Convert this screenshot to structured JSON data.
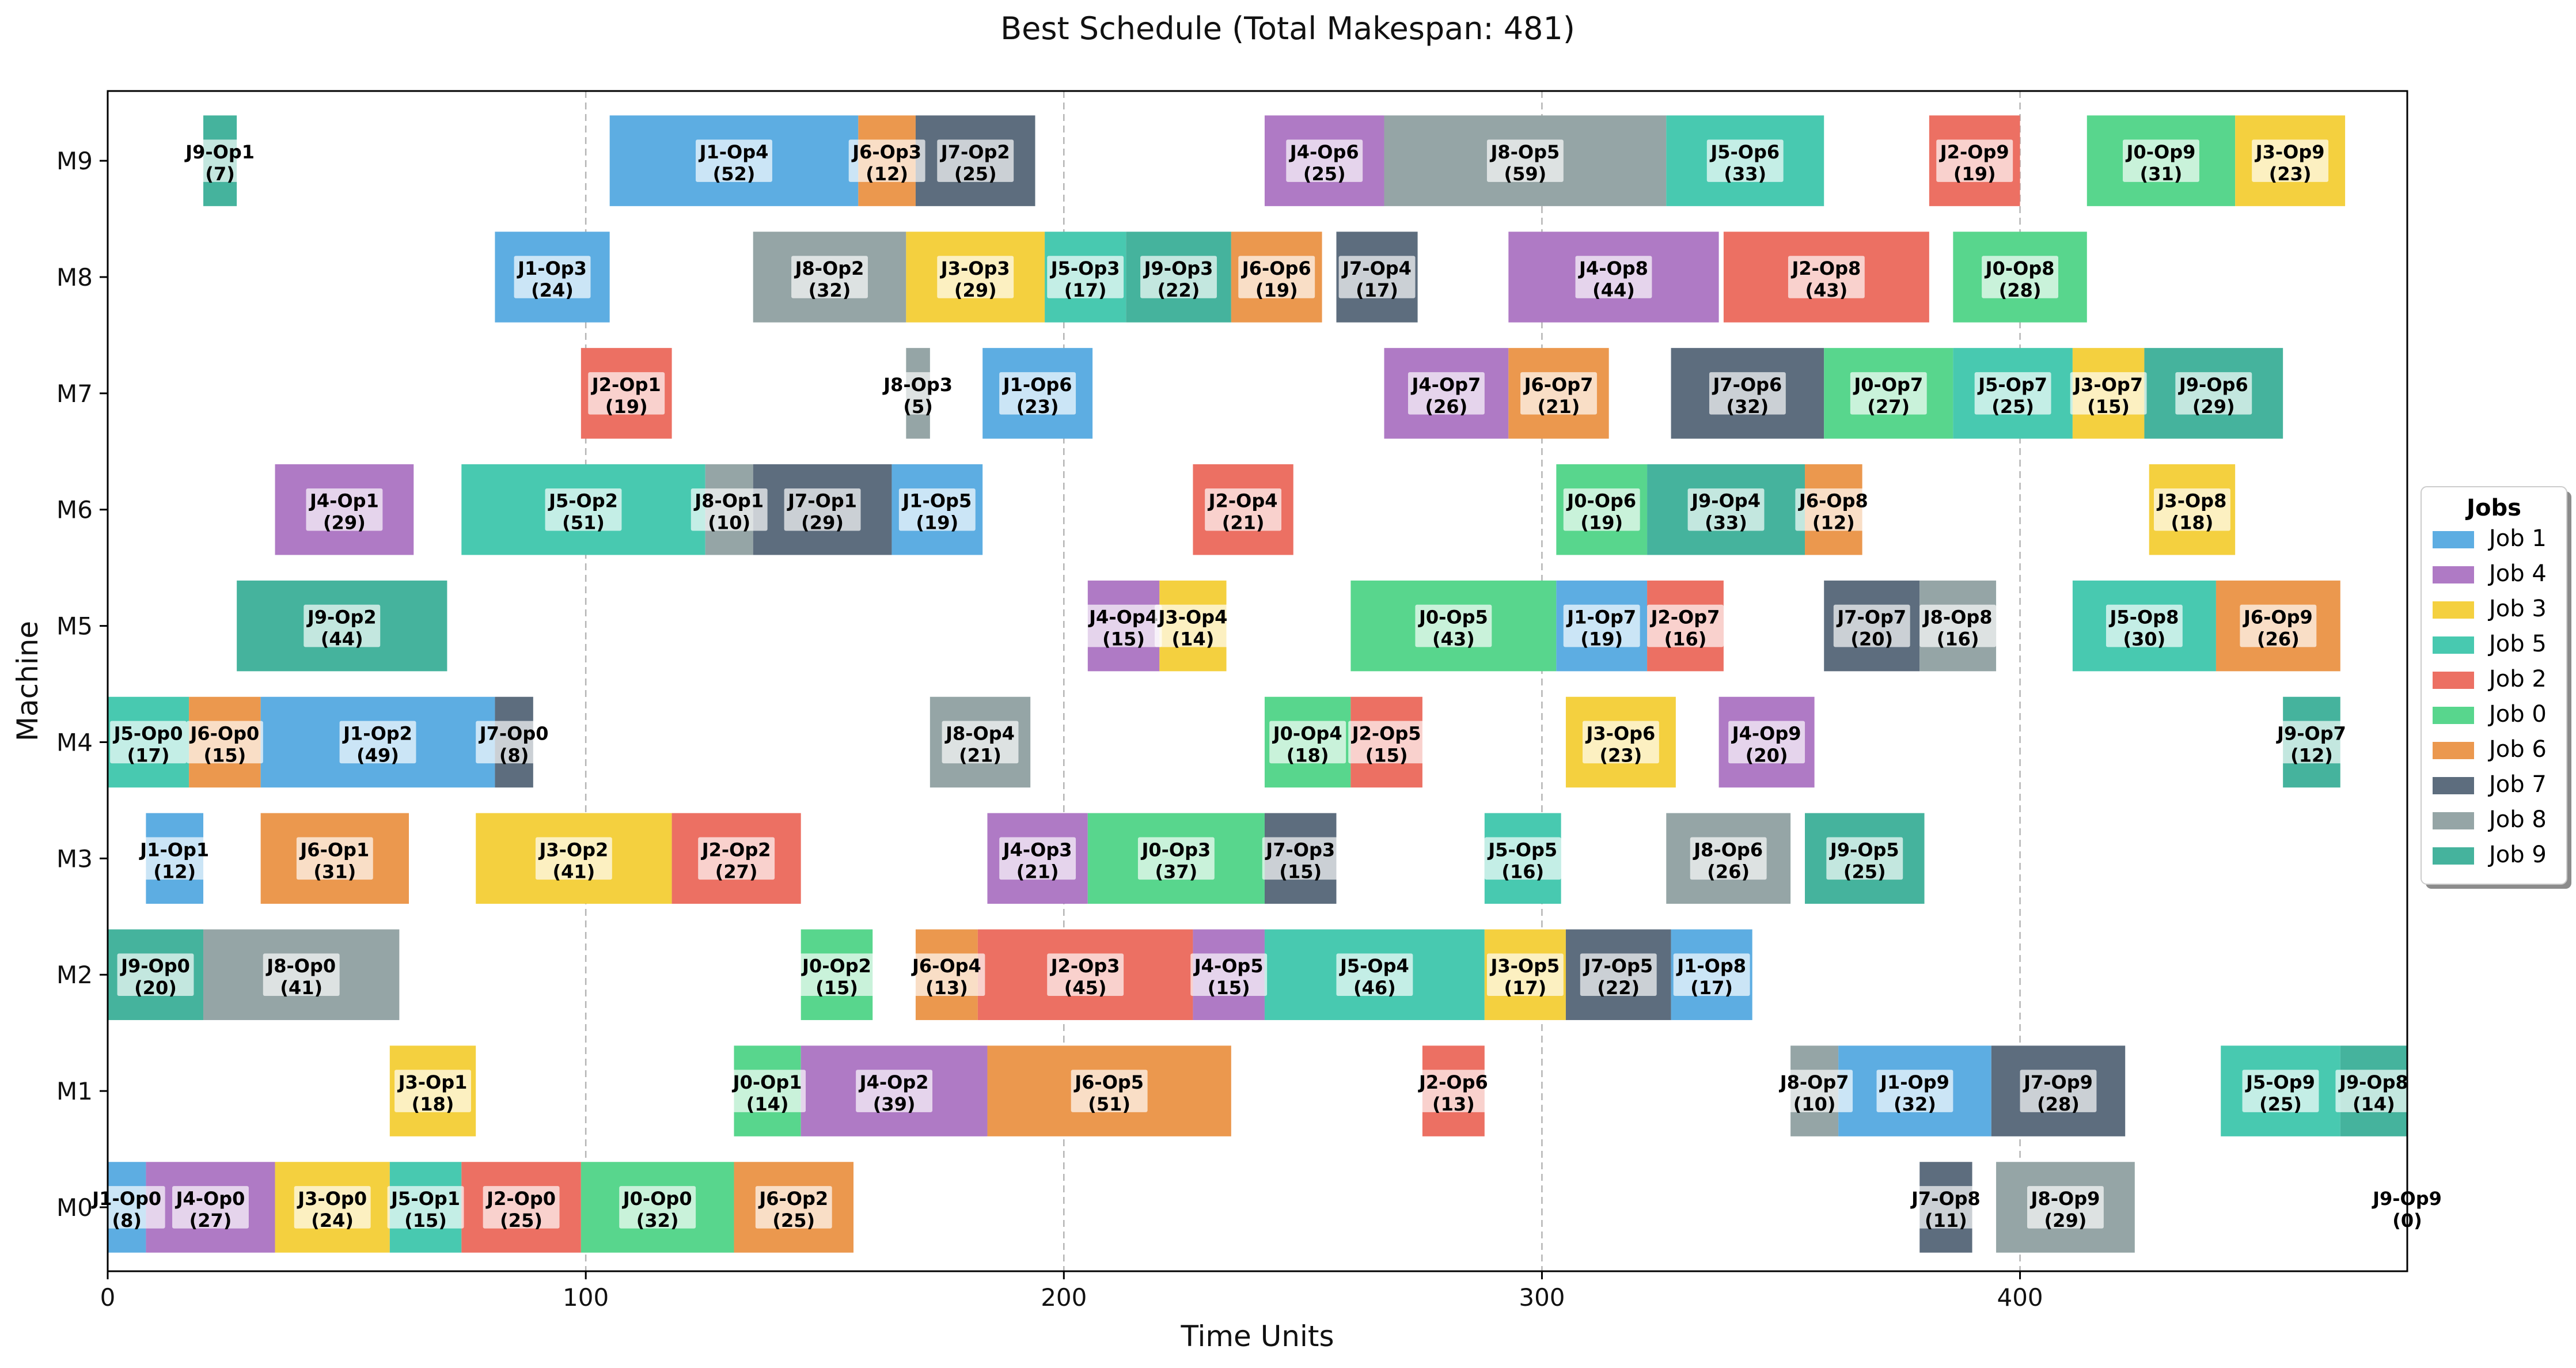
{
  "chart_data": {
    "type": "gantt",
    "title": "Best Schedule (Total Makespan: 481)",
    "xlabel": "Time Units",
    "ylabel": "Machine",
    "xlim": [
      0,
      481
    ],
    "xticks": [
      0,
      100,
      200,
      300,
      400
    ],
    "grid": "vertical dashed at x ticks",
    "machines": [
      "M0",
      "M1",
      "M2",
      "M3",
      "M4",
      "M5",
      "M6",
      "M7",
      "M8",
      "M9"
    ],
    "legend": {
      "title": "Jobs",
      "placement": "center-right",
      "entries": [
        {
          "label": "Job 1",
          "color": "#5DADE2"
        },
        {
          "label": "Job 4",
          "color": "#AF7AC5"
        },
        {
          "label": "Job 3",
          "color": "#F4D03F"
        },
        {
          "label": "Job 5",
          "color": "#48C9B0"
        },
        {
          "label": "Job 2",
          "color": "#EC7063"
        },
        {
          "label": "Job 0",
          "color": "#58D68D"
        },
        {
          "label": "Job 6",
          "color": "#EB984E"
        },
        {
          "label": "Job 7",
          "color": "#5D6D7E"
        },
        {
          "label": "Job 8",
          "color": "#95A5A6"
        },
        {
          "label": "Job 9",
          "color": "#45B39D"
        }
      ]
    },
    "job_colors": {
      "0": "#58D68D",
      "1": "#5DADE2",
      "2": "#EC7063",
      "3": "#F4D03F",
      "4": "#AF7AC5",
      "5": "#48C9B0",
      "6": "#EB984E",
      "7": "#5D6D7E",
      "8": "#95A5A6",
      "9": "#45B39D"
    },
    "operations": [
      {
        "machine": "M0",
        "job": 1,
        "op": 0,
        "start": 0,
        "duration": 8
      },
      {
        "machine": "M0",
        "job": 4,
        "op": 0,
        "start": 8,
        "duration": 27
      },
      {
        "machine": "M0",
        "job": 3,
        "op": 0,
        "start": 35,
        "duration": 24
      },
      {
        "machine": "M0",
        "job": 5,
        "op": 1,
        "start": 59,
        "duration": 15
      },
      {
        "machine": "M0",
        "job": 2,
        "op": 0,
        "start": 74,
        "duration": 25
      },
      {
        "machine": "M0",
        "job": 0,
        "op": 0,
        "start": 99,
        "duration": 32
      },
      {
        "machine": "M0",
        "job": 6,
        "op": 2,
        "start": 131,
        "duration": 25
      },
      {
        "machine": "M0",
        "job": 7,
        "op": 8,
        "start": 379,
        "duration": 11
      },
      {
        "machine": "M0",
        "job": 8,
        "op": 9,
        "start": 395,
        "duration": 29
      },
      {
        "machine": "M0",
        "job": 9,
        "op": 9,
        "start": 481,
        "duration": 0
      },
      {
        "machine": "M1",
        "job": 3,
        "op": 1,
        "start": 59,
        "duration": 18
      },
      {
        "machine": "M1",
        "job": 0,
        "op": 1,
        "start": 131,
        "duration": 14
      },
      {
        "machine": "M1",
        "job": 4,
        "op": 2,
        "start": 145,
        "duration": 39
      },
      {
        "machine": "M1",
        "job": 6,
        "op": 5,
        "start": 184,
        "duration": 51
      },
      {
        "machine": "M1",
        "job": 2,
        "op": 6,
        "start": 275,
        "duration": 13
      },
      {
        "machine": "M1",
        "job": 8,
        "op": 7,
        "start": 352,
        "duration": 10
      },
      {
        "machine": "M1",
        "job": 1,
        "op": 9,
        "start": 362,
        "duration": 32
      },
      {
        "machine": "M1",
        "job": 7,
        "op": 9,
        "start": 394,
        "duration": 28
      },
      {
        "machine": "M1",
        "job": 5,
        "op": 9,
        "start": 442,
        "duration": 25
      },
      {
        "machine": "M1",
        "job": 9,
        "op": 8,
        "start": 467,
        "duration": 14
      },
      {
        "machine": "M2",
        "job": 9,
        "op": 0,
        "start": 0,
        "duration": 20
      },
      {
        "machine": "M2",
        "job": 8,
        "op": 0,
        "start": 20,
        "duration": 41
      },
      {
        "machine": "M2",
        "job": 0,
        "op": 2,
        "start": 145,
        "duration": 15
      },
      {
        "machine": "M2",
        "job": 6,
        "op": 4,
        "start": 169,
        "duration": 13
      },
      {
        "machine": "M2",
        "job": 2,
        "op": 3,
        "start": 182,
        "duration": 45
      },
      {
        "machine": "M2",
        "job": 4,
        "op": 5,
        "start": 227,
        "duration": 15
      },
      {
        "machine": "M2",
        "job": 5,
        "op": 4,
        "start": 242,
        "duration": 46
      },
      {
        "machine": "M2",
        "job": 3,
        "op": 5,
        "start": 288,
        "duration": 17
      },
      {
        "machine": "M2",
        "job": 7,
        "op": 5,
        "start": 305,
        "duration": 22
      },
      {
        "machine": "M2",
        "job": 1,
        "op": 8,
        "start": 327,
        "duration": 17
      },
      {
        "machine": "M3",
        "job": 1,
        "op": 1,
        "start": 8,
        "duration": 12
      },
      {
        "machine": "M3",
        "job": 6,
        "op": 1,
        "start": 32,
        "duration": 31
      },
      {
        "machine": "M3",
        "job": 3,
        "op": 2,
        "start": 77,
        "duration": 41
      },
      {
        "machine": "M3",
        "job": 2,
        "op": 2,
        "start": 118,
        "duration": 27
      },
      {
        "machine": "M3",
        "job": 4,
        "op": 3,
        "start": 184,
        "duration": 21
      },
      {
        "machine": "M3",
        "job": 0,
        "op": 3,
        "start": 205,
        "duration": 37
      },
      {
        "machine": "M3",
        "job": 7,
        "op": 3,
        "start": 242,
        "duration": 15
      },
      {
        "machine": "M3",
        "job": 5,
        "op": 5,
        "start": 288,
        "duration": 16
      },
      {
        "machine": "M3",
        "job": 8,
        "op": 6,
        "start": 326,
        "duration": 26
      },
      {
        "machine": "M3",
        "job": 9,
        "op": 5,
        "start": 355,
        "duration": 25
      },
      {
        "machine": "M4",
        "job": 5,
        "op": 0,
        "start": 0,
        "duration": 17
      },
      {
        "machine": "M4",
        "job": 6,
        "op": 0,
        "start": 17,
        "duration": 15
      },
      {
        "machine": "M4",
        "job": 1,
        "op": 2,
        "start": 32,
        "duration": 49
      },
      {
        "machine": "M4",
        "job": 7,
        "op": 0,
        "start": 81,
        "duration": 8
      },
      {
        "machine": "M4",
        "job": 8,
        "op": 4,
        "start": 172,
        "duration": 21
      },
      {
        "machine": "M4",
        "job": 0,
        "op": 4,
        "start": 242,
        "duration": 18
      },
      {
        "machine": "M4",
        "job": 2,
        "op": 5,
        "start": 260,
        "duration": 15
      },
      {
        "machine": "M4",
        "job": 3,
        "op": 6,
        "start": 305,
        "duration": 23
      },
      {
        "machine": "M4",
        "job": 4,
        "op": 9,
        "start": 337,
        "duration": 20
      },
      {
        "machine": "M4",
        "job": 9,
        "op": 7,
        "start": 455,
        "duration": 12
      },
      {
        "machine": "M5",
        "job": 9,
        "op": 2,
        "start": 27,
        "duration": 44
      },
      {
        "machine": "M5",
        "job": 4,
        "op": 4,
        "start": 205,
        "duration": 15
      },
      {
        "machine": "M5",
        "job": 3,
        "op": 4,
        "start": 220,
        "duration": 14
      },
      {
        "machine": "M5",
        "job": 0,
        "op": 5,
        "start": 260,
        "duration": 43
      },
      {
        "machine": "M5",
        "job": 1,
        "op": 7,
        "start": 303,
        "duration": 19
      },
      {
        "machine": "M5",
        "job": 2,
        "op": 7,
        "start": 322,
        "duration": 16
      },
      {
        "machine": "M5",
        "job": 7,
        "op": 7,
        "start": 359,
        "duration": 20
      },
      {
        "machine": "M5",
        "job": 8,
        "op": 8,
        "start": 379,
        "duration": 16
      },
      {
        "machine": "M5",
        "job": 5,
        "op": 8,
        "start": 411,
        "duration": 30
      },
      {
        "machine": "M5",
        "job": 6,
        "op": 9,
        "start": 441,
        "duration": 26
      },
      {
        "machine": "M6",
        "job": 4,
        "op": 1,
        "start": 35,
        "duration": 29
      },
      {
        "machine": "M6",
        "job": 5,
        "op": 2,
        "start": 74,
        "duration": 51
      },
      {
        "machine": "M6",
        "job": 8,
        "op": 1,
        "start": 125,
        "duration": 10
      },
      {
        "machine": "M6",
        "job": 7,
        "op": 1,
        "start": 135,
        "duration": 29
      },
      {
        "machine": "M6",
        "job": 1,
        "op": 5,
        "start": 164,
        "duration": 19
      },
      {
        "machine": "M6",
        "job": 2,
        "op": 4,
        "start": 227,
        "duration": 21
      },
      {
        "machine": "M6",
        "job": 0,
        "op": 6,
        "start": 303,
        "duration": 19
      },
      {
        "machine": "M6",
        "job": 9,
        "op": 4,
        "start": 322,
        "duration": 33
      },
      {
        "machine": "M6",
        "job": 6,
        "op": 8,
        "start": 355,
        "duration": 12
      },
      {
        "machine": "M6",
        "job": 3,
        "op": 8,
        "start": 427,
        "duration": 18
      },
      {
        "machine": "M7",
        "job": 2,
        "op": 1,
        "start": 99,
        "duration": 19
      },
      {
        "machine": "M7",
        "job": 8,
        "op": 3,
        "start": 167,
        "duration": 5
      },
      {
        "machine": "M7",
        "job": 1,
        "op": 6,
        "start": 183,
        "duration": 23
      },
      {
        "machine": "M7",
        "job": 4,
        "op": 7,
        "start": 267,
        "duration": 26
      },
      {
        "machine": "M7",
        "job": 6,
        "op": 7,
        "start": 293,
        "duration": 21
      },
      {
        "machine": "M7",
        "job": 7,
        "op": 6,
        "start": 327,
        "duration": 32
      },
      {
        "machine": "M7",
        "job": 0,
        "op": 7,
        "start": 359,
        "duration": 27
      },
      {
        "machine": "M7",
        "job": 5,
        "op": 7,
        "start": 386,
        "duration": 25
      },
      {
        "machine": "M7",
        "job": 3,
        "op": 7,
        "start": 411,
        "duration": 15
      },
      {
        "machine": "M7",
        "job": 9,
        "op": 6,
        "start": 426,
        "duration": 29
      },
      {
        "machine": "M8",
        "job": 1,
        "op": 3,
        "start": 81,
        "duration": 24
      },
      {
        "machine": "M8",
        "job": 8,
        "op": 2,
        "start": 135,
        "duration": 32
      },
      {
        "machine": "M8",
        "job": 3,
        "op": 3,
        "start": 167,
        "duration": 29
      },
      {
        "machine": "M8",
        "job": 5,
        "op": 3,
        "start": 196,
        "duration": 17
      },
      {
        "machine": "M8",
        "job": 9,
        "op": 3,
        "start": 213,
        "duration": 22
      },
      {
        "machine": "M8",
        "job": 6,
        "op": 6,
        "start": 235,
        "duration": 19
      },
      {
        "machine": "M8",
        "job": 7,
        "op": 4,
        "start": 257,
        "duration": 17
      },
      {
        "machine": "M8",
        "job": 4,
        "op": 8,
        "start": 293,
        "duration": 44
      },
      {
        "machine": "M8",
        "job": 2,
        "op": 8,
        "start": 338,
        "duration": 43
      },
      {
        "machine": "M8",
        "job": 0,
        "op": 8,
        "start": 386,
        "duration": 28
      },
      {
        "machine": "M9",
        "job": 9,
        "op": 1,
        "start": 20,
        "duration": 7
      },
      {
        "machine": "M9",
        "job": 1,
        "op": 4,
        "start": 105,
        "duration": 52
      },
      {
        "machine": "M9",
        "job": 6,
        "op": 3,
        "start": 157,
        "duration": 12
      },
      {
        "machine": "M9",
        "job": 7,
        "op": 2,
        "start": 169,
        "duration": 25
      },
      {
        "machine": "M9",
        "job": 4,
        "op": 6,
        "start": 242,
        "duration": 25
      },
      {
        "machine": "M9",
        "job": 8,
        "op": 5,
        "start": 267,
        "duration": 59
      },
      {
        "machine": "M9",
        "job": 5,
        "op": 6,
        "start": 326,
        "duration": 33
      },
      {
        "machine": "M9",
        "job": 2,
        "op": 9,
        "start": 381,
        "duration": 19
      },
      {
        "machine": "M9",
        "job": 0,
        "op": 9,
        "start": 414,
        "duration": 31
      },
      {
        "machine": "M9",
        "job": 3,
        "op": 9,
        "start": 445,
        "duration": 23
      }
    ]
  }
}
